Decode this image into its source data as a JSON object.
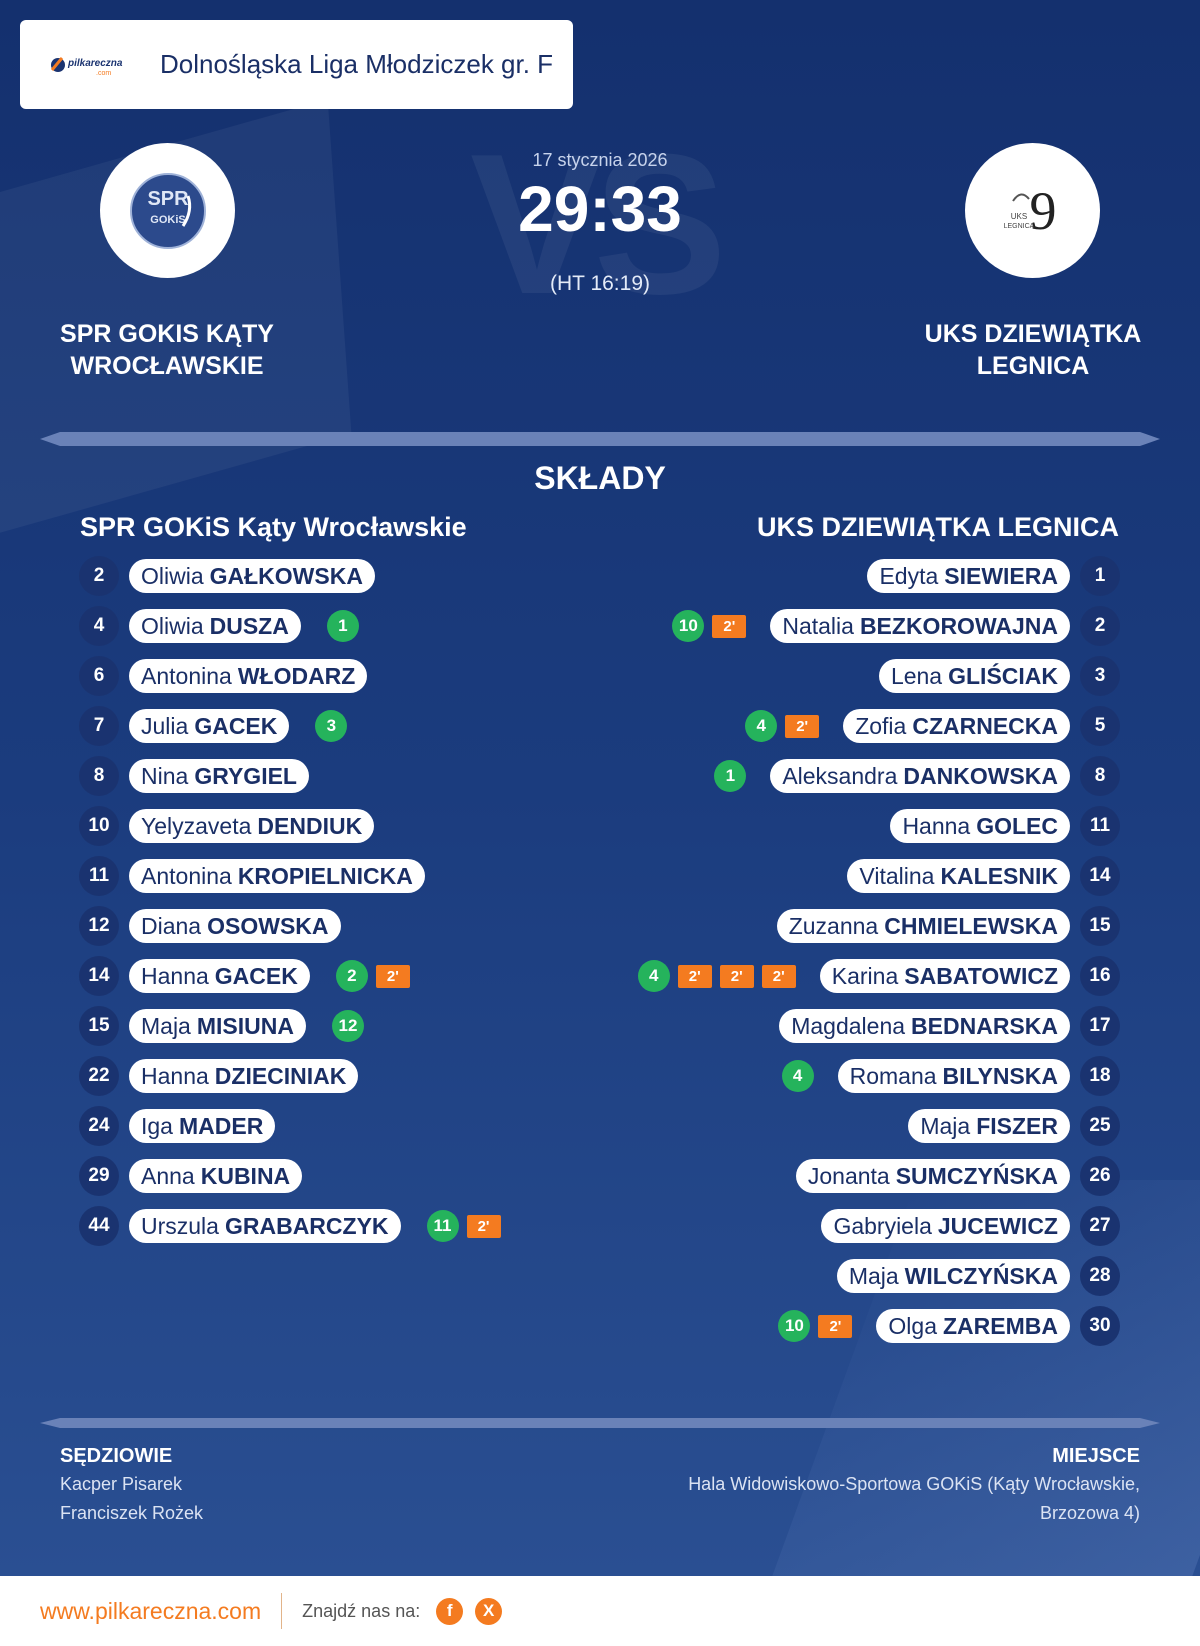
{
  "header": {
    "logo_text": "pilkareczna",
    "logo_sub": ".com",
    "league": "Dolnośląska Liga Młodziczek gr. F"
  },
  "match": {
    "date": "17 stycznia 2026",
    "score": "29:33",
    "halftime": "(HT 16:19)",
    "vs": "VS"
  },
  "home": {
    "name_line1": "SPR GOKIS KĄTY",
    "name_line2": "WROCŁAWSKIE",
    "logo_text1": "SPR",
    "logo_text2": "GOKiS",
    "squad_title": "SPR GOKiS Kąty Wrocławskie",
    "players": [
      {
        "number": "2",
        "first": "Oliwia",
        "last": "GAŁKOWSKA",
        "goals": "",
        "penalties": []
      },
      {
        "number": "4",
        "first": "Oliwia",
        "last": "DUSZA",
        "goals": "1",
        "penalties": []
      },
      {
        "number": "6",
        "first": "Antonina",
        "last": "WŁODARZ",
        "goals": "",
        "penalties": []
      },
      {
        "number": "7",
        "first": "Julia",
        "last": "GACEK",
        "goals": "3",
        "penalties": []
      },
      {
        "number": "8",
        "first": "Nina",
        "last": "GRYGIEL",
        "goals": "",
        "penalties": []
      },
      {
        "number": "10",
        "first": "Yelyzaveta",
        "last": "DENDIUK",
        "goals": "",
        "penalties": []
      },
      {
        "number": "11",
        "first": "Antonina",
        "last": "KROPIELNICKA",
        "goals": "",
        "penalties": []
      },
      {
        "number": "12",
        "first": "Diana",
        "last": "OSOWSKA",
        "goals": "",
        "penalties": []
      },
      {
        "number": "14",
        "first": "Hanna",
        "last": "GACEK",
        "goals": "2",
        "penalties": [
          "2'"
        ]
      },
      {
        "number": "15",
        "first": "Maja",
        "last": "MISIUNA",
        "goals": "12",
        "penalties": []
      },
      {
        "number": "22",
        "first": "Hanna",
        "last": "DZIECINIAK",
        "goals": "",
        "penalties": []
      },
      {
        "number": "24",
        "first": "Iga",
        "last": "MADER",
        "goals": "",
        "penalties": []
      },
      {
        "number": "29",
        "first": "Anna",
        "last": "KUBINA",
        "goals": "",
        "penalties": []
      },
      {
        "number": "44",
        "first": "Urszula",
        "last": "GRABARCZYK",
        "goals": "11",
        "penalties": [
          "2'"
        ]
      }
    ]
  },
  "away": {
    "name_line1": "UKS DZIEWIĄTKA",
    "name_line2": "LEGNICA",
    "logo_text1": "UKS",
    "logo_text2": "LEGNICA",
    "logo_num": "9",
    "squad_title": "UKS DZIEWIĄTKA LEGNICA",
    "players": [
      {
        "number": "1",
        "first": "Edyta",
        "last": "SIEWIERA",
        "goals": "",
        "penalties": []
      },
      {
        "number": "2",
        "first": "Natalia",
        "last": "BEZKOROWAJNA",
        "goals": "10",
        "penalties": [
          "2'"
        ]
      },
      {
        "number": "3",
        "first": "Lena",
        "last": "GLIŚCIAK",
        "goals": "",
        "penalties": []
      },
      {
        "number": "5",
        "first": "Zofia",
        "last": "CZARNECKA",
        "goals": "4",
        "penalties": [
          "2'"
        ]
      },
      {
        "number": "8",
        "first": "Aleksandra",
        "last": "DANKOWSKA",
        "goals": "1",
        "penalties": []
      },
      {
        "number": "11",
        "first": "Hanna",
        "last": "GOLEC",
        "goals": "",
        "penalties": []
      },
      {
        "number": "14",
        "first": "Vitalina",
        "last": "KALESNIK",
        "goals": "",
        "penalties": []
      },
      {
        "number": "15",
        "first": "Zuzanna",
        "last": "CHMIELEWSKA",
        "goals": "",
        "penalties": []
      },
      {
        "number": "16",
        "first": "Karina",
        "last": "SABATOWICZ",
        "goals": "4",
        "penalties": [
          "2'",
          "2'",
          "2'"
        ]
      },
      {
        "number": "17",
        "first": "Magdalena",
        "last": "BEDNARSKA",
        "goals": "",
        "penalties": []
      },
      {
        "number": "18",
        "first": "Romana",
        "last": "BILYNSKA",
        "goals": "4",
        "penalties": []
      },
      {
        "number": "25",
        "first": "Maja",
        "last": "FISZER",
        "goals": "",
        "penalties": []
      },
      {
        "number": "26",
        "first": "Jonanta",
        "last": "SUMCZYŃSKA",
        "goals": "",
        "penalties": []
      },
      {
        "number": "27",
        "first": "Gabryiela",
        "last": "JUCEWICZ",
        "goals": "",
        "penalties": []
      },
      {
        "number": "28",
        "first": "Maja",
        "last": "WILCZYŃSKA",
        "goals": "",
        "penalties": []
      },
      {
        "number": "30",
        "first": "Olga",
        "last": "ZAREMBA",
        "goals": "10",
        "penalties": [
          "2'"
        ]
      }
    ]
  },
  "lineups_title": "SKŁADY",
  "referees": {
    "label": "SĘDZIOWIE",
    "names": [
      "Kacper Pisarek",
      "Franciszek Rożek"
    ]
  },
  "venue": {
    "label": "MIEJSCE",
    "line1": "Hala Widowiskowo-Sportowa GOKiS (Kąty Wrocławskie,",
    "line2": "Brzozowa 4)"
  },
  "footer": {
    "site": "www.pilkareczna.com",
    "find_us": "Znajdź nas na:",
    "facebook_icon": "f",
    "x_icon": "X"
  },
  "colors": {
    "accent": "#f47b20",
    "goal": "#25b35c",
    "navy": "#1a3370"
  }
}
